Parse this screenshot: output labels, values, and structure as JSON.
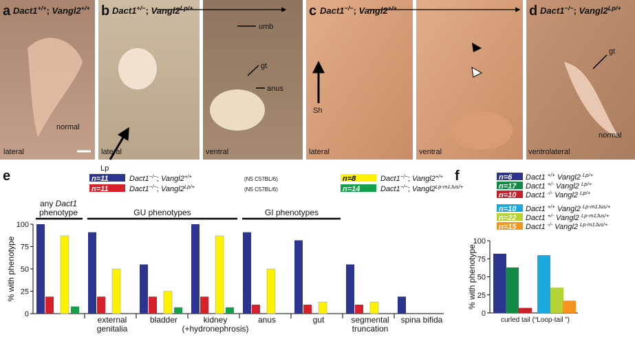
{
  "photos": [
    {
      "letter": "a",
      "genotype": "Dact1+/+; Vangl2+/+",
      "labels": [
        "normal",
        "lateral"
      ]
    },
    {
      "letter": "b",
      "genotype": "Dact1+/−; Vangl2Lp/+",
      "labels": [
        "Lp",
        "lateral",
        "umb",
        "gt",
        "anus",
        "ventral"
      ]
    },
    {
      "letter": "c",
      "genotype": "Dact1−/−; Vangl2+/+",
      "labels": [
        "Sh",
        "lateral",
        "ventral"
      ]
    },
    {
      "letter": "d",
      "genotype": "Dact1−/−; Vangl2Lp/+",
      "labels": [
        "gt",
        "ventrolateral",
        "normal"
      ]
    }
  ],
  "chart_data": [
    {
      "type": "bar",
      "letter": "e",
      "ylabel": "% with phenotype",
      "groups": [
        "any Dact1\nphenotype",
        "GU phenotypes",
        "GI phenotypes"
      ],
      "categories": [
        null,
        "external\ngenitalia",
        "bladder",
        "kidney\n(+hydronephrosis)",
        "anus",
        "gut",
        "segmental\ntruncation",
        "spina bifida"
      ],
      "ylim": [
        0,
        100
      ],
      "yticks": [
        0,
        25,
        50,
        75,
        100
      ],
      "series": [
        {
          "name": "Dact1−/−; Vangl2+/+",
          "n": "n=11",
          "note": "(N5 C57BL/6)",
          "color": "#2b3590",
          "values": [
            100,
            91,
            55,
            100,
            91,
            82,
            55,
            19
          ]
        },
        {
          "name": "Dact1−/−; Vangl2Lp/+",
          "n": "n=11",
          "note": "(N5 C57BL/6)",
          "color": "#d7202a",
          "values": [
            19,
            19,
            19,
            19,
            10,
            10,
            10,
            0
          ]
        },
        {
          "name": "Dact1−/−; Vangl2+/+",
          "n": "n=8",
          "color": "#fff200",
          "values": [
            87,
            50,
            25,
            87,
            50,
            13,
            13,
            0
          ]
        },
        {
          "name": "Dact1−/−; Vangl2Lp-m1Jus/+",
          "n": "n=14",
          "color": "#13a04a",
          "values": [
            8,
            0,
            7,
            7,
            0,
            0,
            0,
            0
          ]
        }
      ]
    },
    {
      "type": "bar",
      "letter": "f",
      "ylabel": "% with phenotype",
      "categories": [
        "curled tail (“Loop-tail ”)"
      ],
      "ylim": [
        0,
        100
      ],
      "yticks": [
        0,
        25,
        50,
        75,
        100
      ],
      "series": [
        {
          "name": "Dact1 +/+ Vangl2 Lp/+",
          "n": "n=6",
          "color": "#2b3590",
          "values": [
            82
          ]
        },
        {
          "name": "Dact1 +/- Vangl2 Lp/+",
          "n": "n=17",
          "color": "#128a44",
          "values": [
            63
          ]
        },
        {
          "name": "Dact1 -/- Vangl2 Lp/+",
          "n": "n=10",
          "color": "#c8202a",
          "values": [
            7
          ]
        },
        {
          "name": "Dact1 +/+ Vangl2 Lp-m1Jus/+",
          "n": "n=10",
          "color": "#18a9e1",
          "values": [
            80
          ]
        },
        {
          "name": "Dact1 +/- Vangl2 Lp-m1Jus/+",
          "n": "n=22",
          "color": "#b5d334",
          "values": [
            35
          ]
        },
        {
          "name": "Dact1 -/- Vangl2 Lp-m1Jus/+",
          "n": "n=15",
          "color": "#f7941d",
          "values": [
            17
          ]
        }
      ]
    }
  ]
}
